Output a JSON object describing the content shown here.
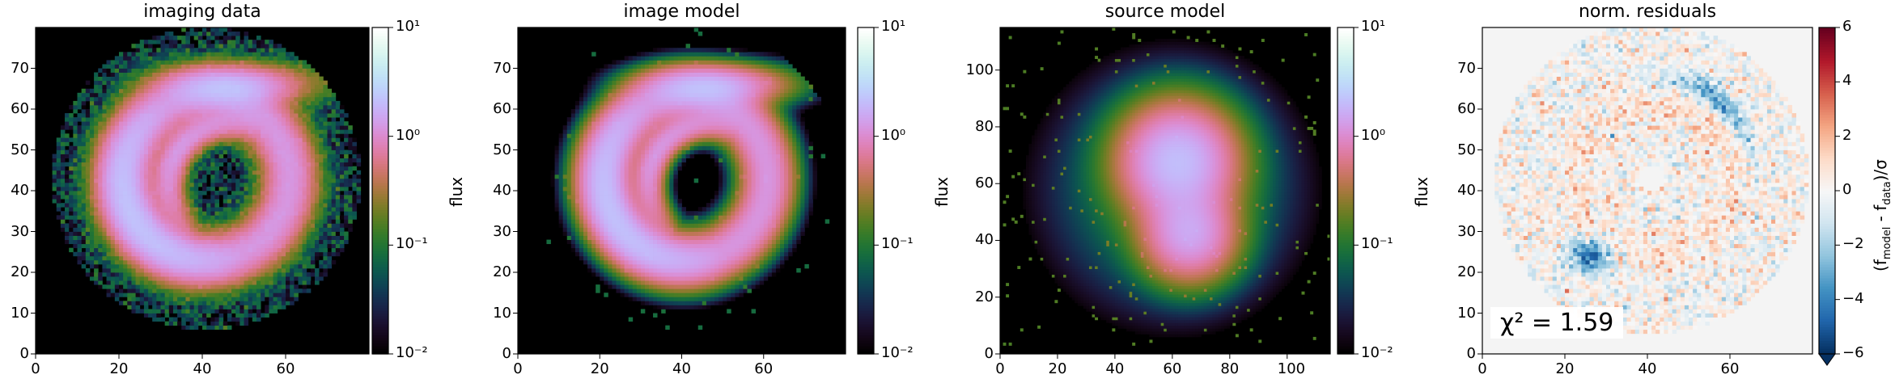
{
  "chart_data": [
    {
      "type": "heatmap",
      "title": "imaging data",
      "structure": "ring",
      "xlim": [
        0,
        80
      ],
      "ylim": [
        0,
        80
      ],
      "xticks": [
        0,
        20,
        40,
        60
      ],
      "yticks": [
        0,
        10,
        20,
        30,
        40,
        50,
        60,
        70
      ],
      "colorbar": {
        "label": "flux",
        "scale": "log",
        "range": [
          0.01,
          10
        ],
        "ticks": [
          0.01,
          0.1,
          1,
          10
        ],
        "tick_labels": [
          "10⁻²",
          "10⁻¹",
          "10⁰",
          "10¹"
        ],
        "colormap": "cubehelix"
      }
    },
    {
      "type": "heatmap",
      "title": "image model",
      "structure": "ring",
      "xlim": [
        0,
        80
      ],
      "ylim": [
        0,
        80
      ],
      "xticks": [
        0,
        20,
        40,
        60
      ],
      "yticks": [
        0,
        10,
        20,
        30,
        40,
        50,
        60,
        70
      ],
      "colorbar": {
        "label": "flux",
        "scale": "log",
        "range": [
          0.01,
          10
        ],
        "ticks": [
          0.01,
          0.1,
          1,
          10
        ],
        "tick_labels": [
          "10⁻²",
          "10⁻¹",
          "10⁰",
          "10¹"
        ],
        "colormap": "cubehelix"
      }
    },
    {
      "type": "heatmap",
      "title": "source model",
      "structure": "blob",
      "xlim": [
        0,
        115
      ],
      "ylim": [
        0,
        115
      ],
      "xticks": [
        0,
        20,
        40,
        60,
        80,
        100
      ],
      "yticks": [
        0,
        20,
        40,
        60,
        80,
        100
      ],
      "colorbar": {
        "label": "flux",
        "scale": "log",
        "range": [
          0.01,
          10
        ],
        "ticks": [
          0.01,
          0.1,
          1,
          10
        ],
        "tick_labels": [
          "10⁻²",
          "10⁻¹",
          "10⁰",
          "10¹"
        ],
        "colormap": "cubehelix"
      }
    },
    {
      "type": "heatmap",
      "title": "norm. residuals",
      "structure": "residuals",
      "xlim": [
        0,
        80
      ],
      "ylim": [
        0,
        80
      ],
      "xticks": [
        0,
        20,
        40,
        60
      ],
      "yticks": [
        0,
        10,
        20,
        30,
        40,
        50,
        60,
        70
      ],
      "annotation": "χ² = 1.59",
      "colorbar": {
        "label": "(f_model - f_data)/σ",
        "scale": "linear",
        "range": [
          -6,
          6
        ],
        "ticks": [
          -6,
          -4,
          -2,
          0,
          2,
          4,
          6
        ],
        "tick_labels": [
          "−6",
          "−4",
          "−2",
          "0",
          "2",
          "4",
          "6"
        ],
        "colormap": "RdBu_r",
        "extend": "min"
      }
    }
  ]
}
